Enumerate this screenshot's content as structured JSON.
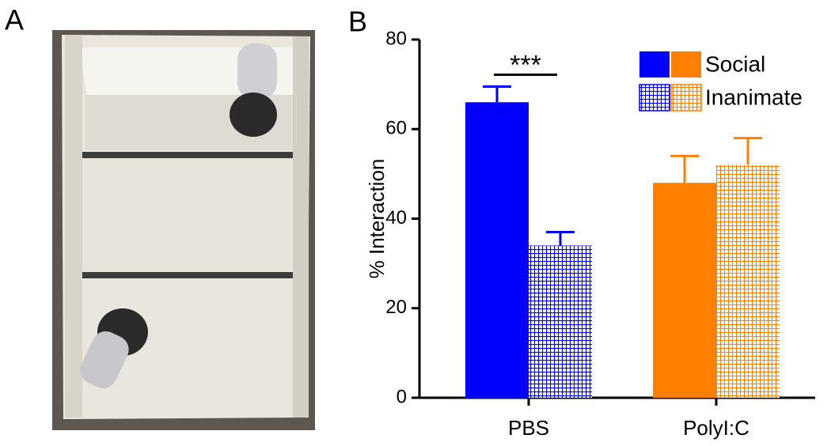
{
  "panels": [
    "A",
    "B"
  ],
  "chart_data": {
    "type": "bar",
    "ylabel": "% Interaction",
    "categories": [
      "PBS",
      "PolyI:C"
    ],
    "category_colors": [
      "#0000ff",
      "#ff8000"
    ],
    "series": [
      {
        "name": "Social",
        "pattern": "solid",
        "values": [
          66,
          48
        ],
        "errors": [
          3.5,
          6
        ]
      },
      {
        "name": "Inanimate",
        "pattern": "hatched",
        "values": [
          34,
          52
        ],
        "errors": [
          3,
          6
        ]
      }
    ],
    "ylim": [
      0,
      80
    ],
    "yticks": [
      0,
      20,
      40,
      60,
      80
    ],
    "annotations": [
      {
        "text": "***",
        "category": 0
      }
    ]
  }
}
